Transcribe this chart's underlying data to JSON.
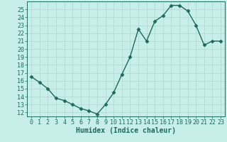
{
  "x": [
    0,
    1,
    2,
    3,
    4,
    5,
    6,
    7,
    8,
    9,
    10,
    11,
    12,
    13,
    14,
    15,
    16,
    17,
    18,
    19,
    20,
    21,
    22,
    23
  ],
  "y": [
    16.5,
    15.8,
    15.0,
    13.8,
    13.5,
    13.0,
    12.5,
    12.2,
    11.8,
    13.0,
    14.5,
    16.8,
    19.0,
    22.5,
    21.0,
    23.5,
    24.2,
    25.5,
    25.5,
    24.8,
    23.0,
    20.5,
    21.0,
    21.0
  ],
  "line_color": "#1a6b5a",
  "marker_color": "#1a6b5a",
  "bg_color": "#c8eee8",
  "grid_color": "#b0d8cc",
  "xlabel": "Humidex (Indice chaleur)",
  "ylim": [
    11.5,
    26.0
  ],
  "xlim": [
    -0.5,
    23.5
  ],
  "yticks": [
    12,
    13,
    14,
    15,
    16,
    17,
    18,
    19,
    20,
    21,
    22,
    23,
    24,
    25
  ],
  "xticks": [
    0,
    1,
    2,
    3,
    4,
    5,
    6,
    7,
    8,
    9,
    10,
    11,
    12,
    13,
    14,
    15,
    16,
    17,
    18,
    19,
    20,
    21,
    22,
    23
  ],
  "xlabel_fontsize": 7,
  "tick_fontsize": 6,
  "marker_size": 2.5,
  "line_width": 1.0
}
